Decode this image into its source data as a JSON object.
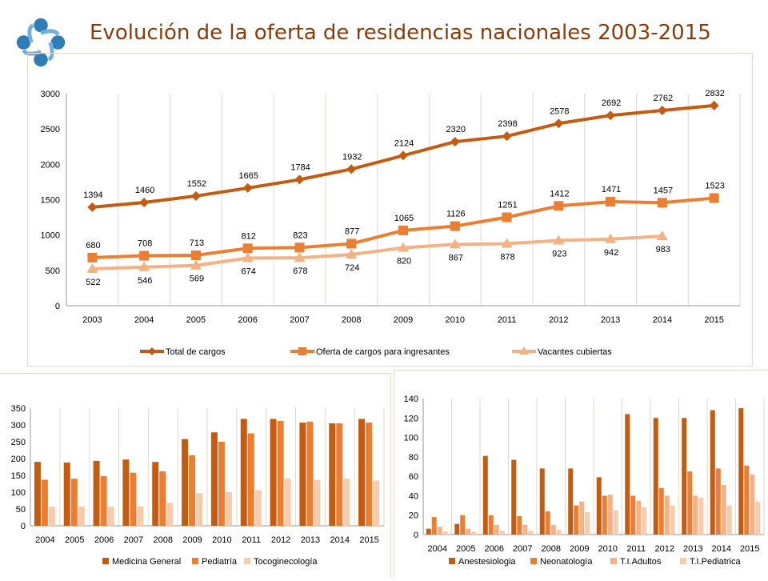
{
  "header": {
    "title": "Evolución de la oferta de residencias nacionales 2003-2015"
  },
  "colors": {
    "dark": "#C55A11",
    "mid": "#ED7D31",
    "light": "#F4B183",
    "pale": "#F8CBAD",
    "title": "#8B3A08",
    "logo": "#2E7DB5"
  },
  "chart_data": [
    {
      "type": "line",
      "title": "",
      "x": [
        "2003",
        "2004",
        "2005",
        "2006",
        "2007",
        "2008",
        "2009",
        "2010",
        "2011",
        "2012",
        "2013",
        "2014",
        "2015"
      ],
      "ylim": [
        0,
        3000
      ],
      "yticks": [
        0,
        500,
        1000,
        1500,
        2000,
        2500,
        3000
      ],
      "grid": "vertical",
      "legend": "bottom",
      "series": [
        {
          "name": "Total de cargos",
          "marker": "diamond",
          "color": "#C55A11",
          "values": [
            1394,
            1460,
            1552,
            1665,
            1784,
            1932,
            2124,
            2320,
            2398,
            2578,
            2692,
            2762,
            2832
          ]
        },
        {
          "name": "Oferta de cargos para ingresantes",
          "marker": "square",
          "color": "#ED7D31",
          "values": [
            680,
            708,
            713,
            812,
            823,
            877,
            1065,
            1126,
            1251,
            1412,
            1471,
            1457,
            1523
          ]
        },
        {
          "name": "Vacantes cubiertas",
          "marker": "triangle",
          "color": "#F4B183",
          "values": [
            522,
            546,
            569,
            674,
            678,
            724,
            820,
            867,
            878,
            923,
            942,
            983,
            null
          ]
        }
      ]
    },
    {
      "type": "bar",
      "categories": [
        "2004",
        "2005",
        "2006",
        "2007",
        "2008",
        "2009",
        "2010",
        "2011",
        "2012",
        "2013",
        "2014",
        "2015"
      ],
      "ylim": [
        0,
        350
      ],
      "yticks": [
        0,
        50,
        100,
        150,
        200,
        250,
        300,
        350
      ],
      "grid": "vertical",
      "legend": "bottom",
      "series": [
        {
          "name": "Medicina General",
          "color": "#C55A11",
          "values": [
            190,
            188,
            193,
            197,
            190,
            258,
            278,
            318,
            318,
            307,
            305,
            318
          ]
        },
        {
          "name": "Pediatría",
          "color": "#ED7D31",
          "values": [
            137,
            140,
            148,
            158,
            162,
            210,
            250,
            275,
            312,
            310,
            305,
            307
          ]
        },
        {
          "name": "Tocoginecología",
          "color": "#F8CBAD",
          "values": [
            57,
            57,
            57,
            58,
            68,
            97,
            100,
            106,
            140,
            137,
            140,
            135
          ]
        }
      ]
    },
    {
      "type": "bar",
      "categories": [
        "2004",
        "2005",
        "2006",
        "2007",
        "2008",
        "2009",
        "2010",
        "2011",
        "2012",
        "2013",
        "2014",
        "2015"
      ],
      "ylim": [
        0,
        140
      ],
      "yticks": [
        0,
        20,
        40,
        60,
        80,
        100,
        120,
        140
      ],
      "grid": "vertical",
      "legend": "bottom",
      "series": [
        {
          "name": "Anestesiologia",
          "color": "#C55A11",
          "values": [
            6,
            11,
            81,
            77,
            68,
            68,
            59,
            124,
            120,
            120,
            128,
            130
          ]
        },
        {
          "name": "Neonatología",
          "color": "#ED7D31",
          "values": [
            18,
            20,
            20,
            19,
            24,
            30,
            40,
            40,
            48,
            65,
            68,
            71
          ]
        },
        {
          "name": "T.I.Adultos",
          "color": "#F4B183",
          "values": [
            8,
            6,
            10,
            10,
            10,
            34,
            41,
            35,
            40,
            40,
            51,
            62
          ]
        },
        {
          "name": "T.I.Pediatrica",
          "color": "#F8CBAD",
          "values": [
            3,
            3,
            4,
            4,
            5,
            23,
            25,
            28,
            30,
            38,
            30,
            34
          ]
        }
      ]
    }
  ]
}
